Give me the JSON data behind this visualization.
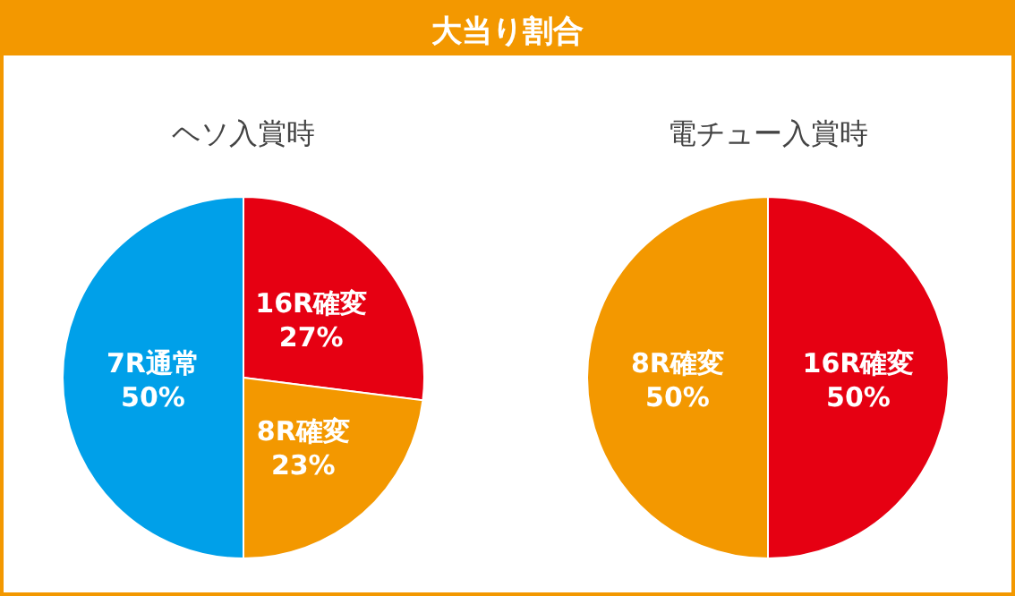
{
  "chart_data": [
    {
      "type": "pie",
      "title": "大当り割合",
      "subtitle": "ヘソ入賞時",
      "categories": [
        "16R確変",
        "8R確変",
        "7R通常"
      ],
      "values": [
        27,
        23,
        50
      ],
      "value_labels": [
        "27%",
        "23%",
        "50%"
      ],
      "colors": [
        "#e60012",
        "#f39800",
        "#00a0e9"
      ]
    },
    {
      "type": "pie",
      "subtitle": "電チュー入賞時",
      "categories": [
        "16R確変",
        "8R確変"
      ],
      "values": [
        50,
        50
      ],
      "value_labels": [
        "50%",
        "50%"
      ],
      "colors": [
        "#e60012",
        "#f39800"
      ]
    }
  ]
}
